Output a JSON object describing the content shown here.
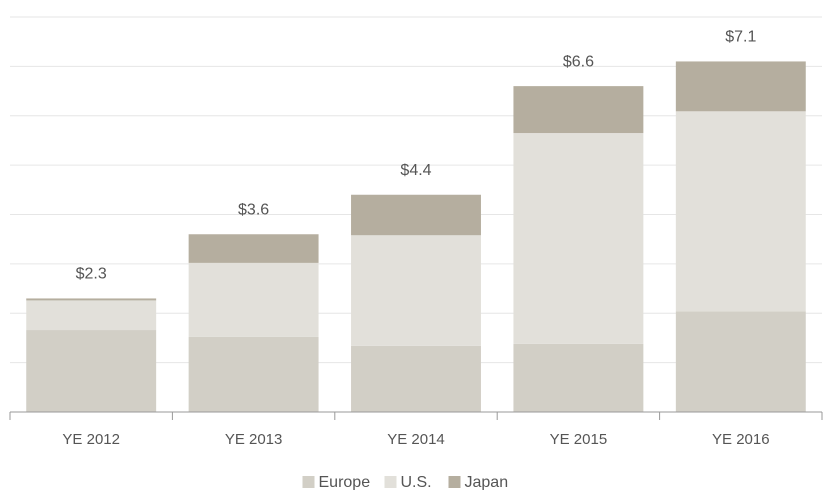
{
  "chart_data": {
    "type": "stacked_bar",
    "categories": [
      "YE 2012",
      "YE 2013",
      "YE 2014",
      "YE 2015",
      "YE 2016"
    ],
    "series": [
      {
        "name": "Europe",
        "color": "#d2cfc6",
        "values": [
          1.66,
          1.52,
          1.34,
          1.38,
          2.04
        ]
      },
      {
        "name": "U.S.",
        "color": "#e2e0da",
        "values": [
          0.6,
          1.5,
          2.24,
          4.27,
          4.05
        ]
      },
      {
        "name": "Japan",
        "color": "#b5ae9f",
        "values": [
          0.04,
          0.58,
          0.82,
          0.95,
          1.01
        ]
      }
    ],
    "totals": [
      2.3,
      3.6,
      4.4,
      6.6,
      7.1
    ],
    "total_labels": [
      "$2.3",
      "$3.6",
      "$4.4",
      "$6.6",
      "$7.1"
    ],
    "ylim": [
      0,
      8
    ],
    "yticks": [
      0,
      1,
      2,
      3,
      4,
      5,
      6,
      7,
      8
    ],
    "grid": true,
    "legend": "bottom"
  }
}
